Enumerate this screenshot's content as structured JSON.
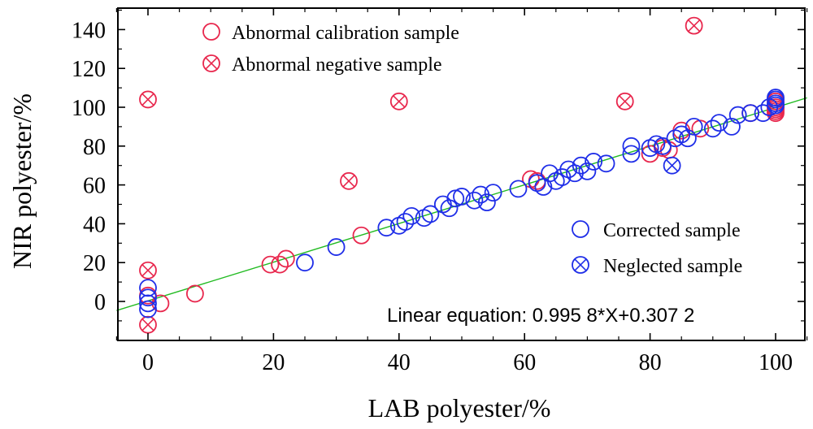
{
  "chart_data": {
    "type": "scatter",
    "xlabel": "LAB polyester/%",
    "ylabel": "NIR polyester/%",
    "xlim": [
      -5,
      105
    ],
    "ylim": [
      -19,
      151
    ],
    "xticks": [
      0,
      20,
      40,
      60,
      80,
      100
    ],
    "yticks": [
      0,
      20,
      40,
      60,
      80,
      100,
      120,
      140
    ],
    "annotation": "Linear equation: 0.995 8*X+0.307 2",
    "fit_line": {
      "slope": 0.9958,
      "intercept": 0.3072,
      "color": "#22bb22"
    },
    "legend": [
      {
        "label": "Abnormal calibration sample",
        "marker": "circle",
        "color": "#e8274d",
        "position": "top-left"
      },
      {
        "label": "Abnormal negative sample",
        "marker": "circle-x",
        "color": "#e8274d",
        "position": "top-left"
      },
      {
        "label": "Corrected sample",
        "marker": "circle",
        "color": "#1f2ee8",
        "position": "bottom-right"
      },
      {
        "label": "Neglected sample",
        "marker": "circle-x",
        "color": "#1f2ee8",
        "position": "bottom-right"
      }
    ],
    "series": [
      {
        "name": "Abnormal calibration sample",
        "marker": "circle",
        "color": "#e8274d",
        "points": [
          [
            0,
            3
          ],
          [
            2,
            -1
          ],
          [
            7.5,
            4
          ],
          [
            19.5,
            19
          ],
          [
            21,
            19
          ],
          [
            22,
            22
          ],
          [
            34,
            34
          ],
          [
            61,
            63
          ],
          [
            62,
            62
          ],
          [
            80,
            76
          ],
          [
            82,
            79
          ],
          [
            83,
            78
          ],
          [
            85,
            88
          ],
          [
            88,
            89
          ],
          [
            96,
            97
          ],
          [
            100,
            97
          ],
          [
            100,
            98
          ],
          [
            100,
            99
          ],
          [
            100,
            100
          ],
          [
            100,
            103
          ]
        ]
      },
      {
        "name": "Abnormal negative sample",
        "marker": "circle-x",
        "color": "#e8274d",
        "points": [
          [
            0,
            104
          ],
          [
            0,
            16
          ],
          [
            0,
            -12
          ],
          [
            32,
            62
          ],
          [
            40,
            103
          ],
          [
            76,
            103
          ],
          [
            87,
            142
          ]
        ]
      },
      {
        "name": "Corrected sample",
        "marker": "circle",
        "color": "#1f2ee8",
        "points": [
          [
            0,
            7
          ],
          [
            0,
            2
          ],
          [
            0,
            -1
          ],
          [
            0,
            -4
          ],
          [
            25,
            20
          ],
          [
            30,
            28
          ],
          [
            38,
            38
          ],
          [
            40,
            39
          ],
          [
            41,
            41
          ],
          [
            42,
            44
          ],
          [
            44,
            43
          ],
          [
            45,
            45
          ],
          [
            47,
            50
          ],
          [
            48,
            48
          ],
          [
            49,
            53
          ],
          [
            50,
            54
          ],
          [
            52,
            52
          ],
          [
            53,
            55
          ],
          [
            54,
            51
          ],
          [
            55,
            56
          ],
          [
            59,
            58
          ],
          [
            62,
            61
          ],
          [
            63,
            59
          ],
          [
            64,
            66
          ],
          [
            65,
            62
          ],
          [
            66,
            64
          ],
          [
            67,
            68
          ],
          [
            68,
            66
          ],
          [
            69,
            70
          ],
          [
            70,
            67
          ],
          [
            71,
            72
          ],
          [
            73,
            71
          ],
          [
            77,
            76
          ],
          [
            77,
            80
          ],
          [
            80,
            79
          ],
          [
            81,
            81
          ],
          [
            82,
            80
          ],
          [
            84,
            84
          ],
          [
            85,
            86
          ],
          [
            86,
            84
          ],
          [
            87,
            90
          ],
          [
            90,
            89
          ],
          [
            91,
            92
          ],
          [
            93,
            90
          ],
          [
            94,
            96
          ],
          [
            96,
            97
          ],
          [
            98,
            97
          ],
          [
            99,
            100
          ],
          [
            100,
            101
          ],
          [
            100,
            102
          ],
          [
            100,
            104
          ],
          [
            100,
            105
          ]
        ]
      },
      {
        "name": "Neglected sample",
        "marker": "circle-x",
        "color": "#1f2ee8",
        "points": [
          [
            83.5,
            70
          ]
        ]
      }
    ]
  }
}
